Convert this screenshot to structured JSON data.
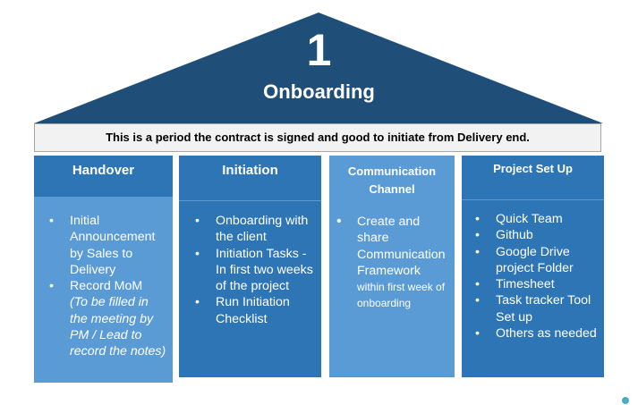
{
  "roof": {
    "number": "1",
    "title": "Onboarding",
    "color": "#1f4e79"
  },
  "banner": {
    "text": "This is a period the contract is signed and good to initiate from Delivery end."
  },
  "columns": [
    {
      "title": "Handover",
      "items": [
        {
          "text": "Initial Announcement by Sales to Delivery"
        },
        {
          "text": "Record MoM",
          "note": "(To be filled in the meeting by PM / Lead to record the notes)"
        }
      ]
    },
    {
      "title": "Initiation",
      "items": [
        {
          "text": "Onboarding with the client"
        },
        {
          "text": "Initiation Tasks - In first two weeks of  the project"
        },
        {
          "text": "Run Initiation Checklist"
        }
      ]
    },
    {
      "title": "Communication Channel",
      "items": [
        {
          "text": "Create and share Communication Framework",
          "note": "within first week of onboarding"
        }
      ]
    },
    {
      "title": "Project Set Up",
      "items": [
        {
          "text": "Quick Team"
        },
        {
          "text": "Github"
        },
        {
          "text": "Google Drive project Folder"
        },
        {
          "text": "Timesheet"
        },
        {
          "text": "Task tracker Tool Set up"
        },
        {
          "text": "Others as needed"
        }
      ]
    }
  ],
  "colors": {
    "dark_blue": "#1f4e79",
    "mid_blue": "#2e75b6",
    "light_blue": "#5b9bd5",
    "banner_bg": "#f2f2f2"
  }
}
